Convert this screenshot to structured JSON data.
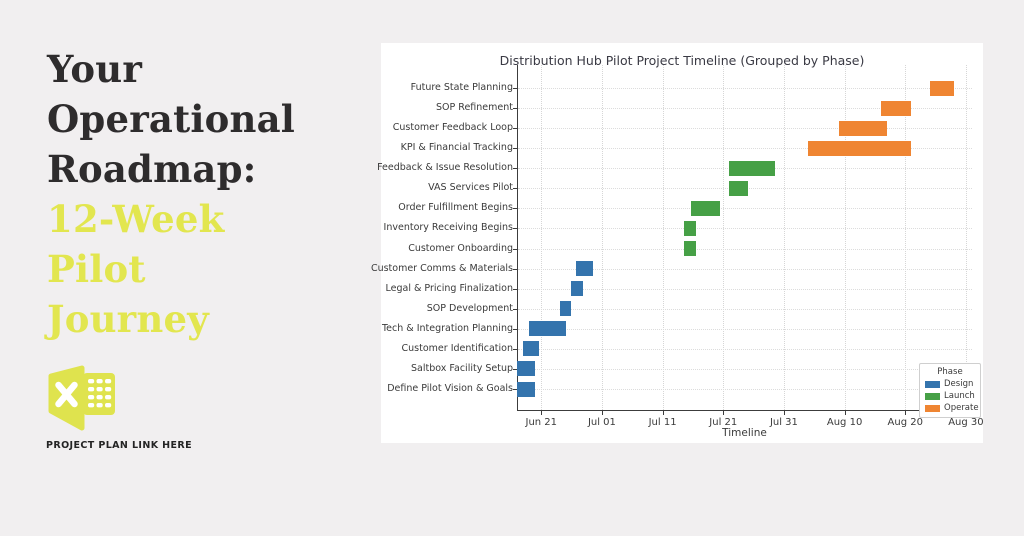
{
  "page": {
    "background": "#f1eff0",
    "panel_background": "#ffffff"
  },
  "left_panel": {
    "title_dark_lines": [
      "Your",
      "Operational",
      "Roadmap:"
    ],
    "title_accent_lines": [
      "12-Week",
      "Pilot",
      "Journey"
    ],
    "title_dark_color": "#2e2c2d",
    "accent_color": "#e2e64f",
    "link_caption": "PROJECT PLAN LINK HERE",
    "excel_icon_color": "#dfe34e"
  },
  "chart_data": {
    "type": "bar",
    "orientation": "horizontal-gantt",
    "title": "Distribution Hub Pilot Project Timeline (Grouped by Phase)",
    "xlabel": "Timeline",
    "grid": "dotted-both-axes",
    "axis_start": "Jun 17",
    "axis_range_days": 75,
    "x_ticks": [
      {
        "label": "Jun 21",
        "day": 4
      },
      {
        "label": "Jul 01",
        "day": 14
      },
      {
        "label": "Jul 11",
        "day": 24
      },
      {
        "label": "Jul 21",
        "day": 34
      },
      {
        "label": "Jul 31",
        "day": 44
      },
      {
        "label": "Aug 10",
        "day": 54
      },
      {
        "label": "Aug 20",
        "day": 64
      },
      {
        "label": "Aug 30",
        "day": 74
      }
    ],
    "legend": {
      "title": "Phase",
      "position": "lower-right",
      "entries": [
        {
          "label": "Design",
          "color": "#3474ad"
        },
        {
          "label": "Launch",
          "color": "#46a046"
        },
        {
          "label": "Operate",
          "color": "#ef8532"
        }
      ]
    },
    "phase_colors": {
      "Design": "#3474ad",
      "Launch": "#46a046",
      "Operate": "#ef8532"
    },
    "tasks": [
      {
        "label": "Future State Planning",
        "phase": "Operate",
        "start": "Aug 24",
        "end": "Aug 28",
        "start_day": 68,
        "end_day": 72
      },
      {
        "label": "SOP Refinement",
        "phase": "Operate",
        "start": "Aug 16",
        "end": "Aug 21",
        "start_day": 60,
        "end_day": 65
      },
      {
        "label": "Customer Feedback Loop",
        "phase": "Operate",
        "start": "Aug 09",
        "end": "Aug 17",
        "start_day": 53,
        "end_day": 61
      },
      {
        "label": "KPI & Financial Tracking",
        "phase": "Operate",
        "start": "Aug 04",
        "end": "Aug 21",
        "start_day": 48,
        "end_day": 65
      },
      {
        "label": "Feedback & Issue Resolution",
        "phase": "Launch",
        "start": "Jul 22",
        "end": "Jul 29",
        "start_day": 35,
        "end_day": 42.6
      },
      {
        "label": "VAS Services Pilot",
        "phase": "Launch",
        "start": "Jul 22",
        "end": "Jul 25",
        "start_day": 35,
        "end_day": 38
      },
      {
        "label": "Order Fulfillment Begins",
        "phase": "Launch",
        "start": "Jul 16",
        "end": "Jul 21",
        "start_day": 28.6,
        "end_day": 33.5
      },
      {
        "label": "Inventory Receiving Begins",
        "phase": "Launch",
        "start": "Jul 15",
        "end": "Jul 17",
        "start_day": 27.6,
        "end_day": 29.5
      },
      {
        "label": "Customer Onboarding",
        "phase": "Launch",
        "start": "Jul 15",
        "end": "Jul 17",
        "start_day": 27.6,
        "end_day": 29.5
      },
      {
        "label": "Customer Comms & Materials",
        "phase": "Design",
        "start": "Jun 27",
        "end": "Jun 30",
        "start_day": 9.8,
        "end_day": 12.6
      },
      {
        "label": "Legal & Pricing Finalization",
        "phase": "Design",
        "start": "Jun 26",
        "end": "Jun 28",
        "start_day": 8.9,
        "end_day": 10.8
      },
      {
        "label": "SOP Development",
        "phase": "Design",
        "start": "Jun 24",
        "end": "Jun 26",
        "start_day": 7.1,
        "end_day": 8.9
      },
      {
        "label": "Tech & Integration Planning",
        "phase": "Design",
        "start": "Jun 19",
        "end": "Jun 25",
        "start_day": 2.0,
        "end_day": 8.0
      },
      {
        "label": "Customer Identification",
        "phase": "Design",
        "start": "Jun 18",
        "end": "Jun 21",
        "start_day": 1.0,
        "end_day": 3.7
      },
      {
        "label": "Saltbox Facility Setup",
        "phase": "Design",
        "start": "Jun 17",
        "end": "Jun 20",
        "start_day": 0,
        "end_day": 2.9
      },
      {
        "label": "Define Pilot Vision & Goals",
        "phase": "Design",
        "start": "Jun 17",
        "end": "Jun 20",
        "start_day": 0,
        "end_day": 2.9
      }
    ]
  }
}
